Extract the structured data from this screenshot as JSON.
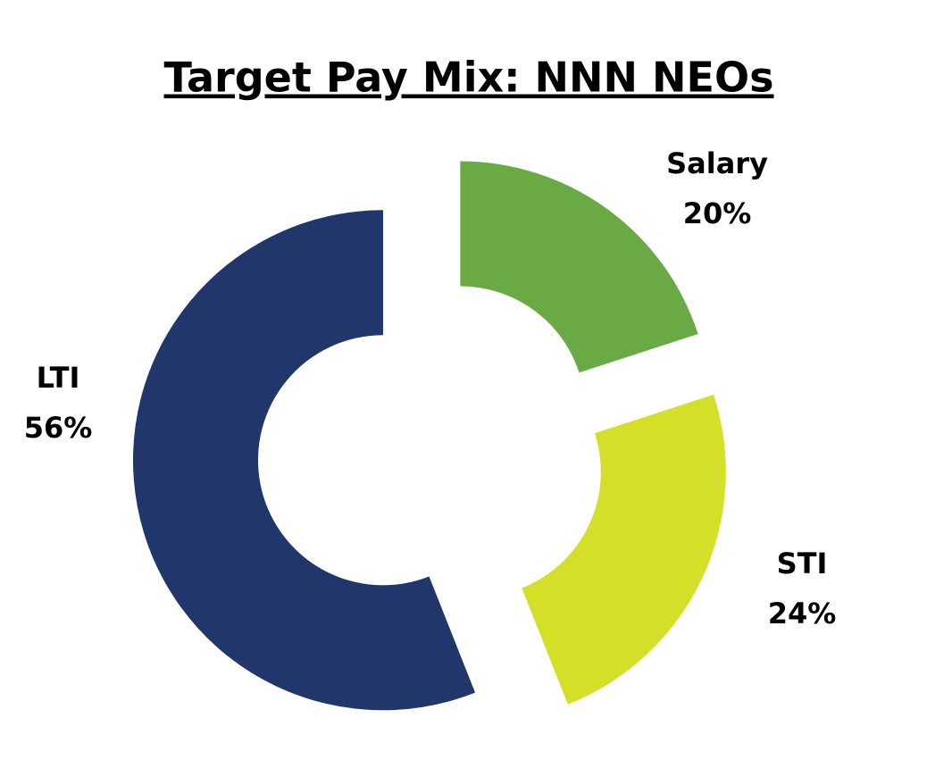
{
  "chart_data": {
    "type": "donut",
    "title": "Target Pay Mix: NNN NEOs",
    "categories": [
      "Salary",
      "STI",
      "LTI"
    ],
    "values": [
      20,
      24,
      56
    ],
    "value_labels": [
      "20%",
      "24%",
      "56%"
    ],
    "colors": [
      "#6aaa45",
      "#d4df28",
      "#21366b"
    ]
  }
}
